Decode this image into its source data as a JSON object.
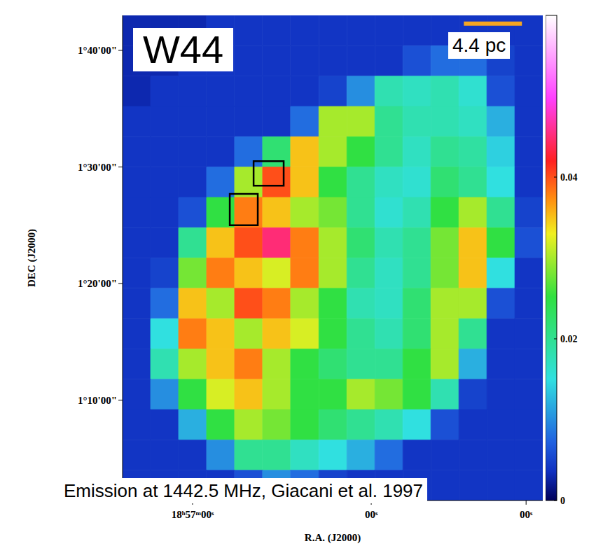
{
  "chart_data": {
    "type": "heatmap",
    "title": "W44",
    "caption": "Emission at 1442.5 MHz, Giacani et al. 1997",
    "x_label": "R.A. (J2000)",
    "y_label": "DEC (J2000)",
    "xlim": [
      68243.5,
      68102.4
    ],
    "xticks": [
      {
        "value": 68220,
        "label": "18ʰ57ᵐ00ˢ"
      },
      {
        "value": 68160,
        "label": "00ˢ"
      },
      {
        "value": 68108,
        "label": "00ˢ"
      }
    ],
    "ylim": [
      61.4,
      103.0
    ],
    "yticks": [
      {
        "value": 70,
        "label": "1°10'00\""
      },
      {
        "value": 80,
        "label": "1°20'00\""
      },
      {
        "value": 90,
        "label": "1°30'00\""
      },
      {
        "value": 100,
        "label": "1°40'00\""
      }
    ],
    "x_edges": [
      68243.5,
      68234.1,
      68224.7,
      68215.3,
      68205.9,
      68196.5,
      68187.1,
      68177.6,
      68168.2,
      68158.8,
      68149.4,
      68140.0,
      68130.6,
      68121.2,
      68111.8,
      68102.4
    ],
    "y_edges": [
      103.0,
      100.4,
      97.8,
      95.2,
      92.6,
      90.0,
      87.4,
      84.8,
      82.2,
      79.6,
      77.0,
      74.4,
      71.8,
      69.2,
      66.6,
      64.0,
      61.4
    ],
    "values": [
      [
        0.003,
        0.003,
        0.003,
        0.004,
        0.004,
        0.004,
        0.004,
        0.004,
        0.004,
        0.004,
        0.004,
        0.004,
        0.004,
        0.004,
        0.004
      ],
      [
        0.003,
        0.003,
        0.004,
        0.004,
        0.004,
        0.004,
        0.004,
        0.004,
        0.004,
        0.004,
        0.006,
        0.008,
        0.008,
        0.005,
        0.004
      ],
      [
        0.003,
        0.004,
        0.004,
        0.004,
        0.004,
        0.004,
        0.004,
        0.005,
        0.01,
        0.018,
        0.017,
        0.018,
        0.016,
        0.006,
        0.004
      ],
      [
        0.004,
        0.004,
        0.004,
        0.004,
        0.004,
        0.004,
        0.008,
        0.03,
        0.03,
        0.02,
        0.018,
        0.018,
        0.017,
        0.012,
        0.004
      ],
      [
        0.004,
        0.004,
        0.004,
        0.004,
        0.008,
        0.022,
        0.035,
        0.03,
        0.025,
        0.02,
        0.017,
        0.02,
        0.019,
        0.014,
        0.004
      ],
      [
        0.004,
        0.004,
        0.004,
        0.008,
        0.03,
        0.04,
        0.035,
        0.025,
        0.02,
        0.017,
        0.016,
        0.022,
        0.02,
        0.015,
        0.004
      ],
      [
        0.004,
        0.004,
        0.006,
        0.025,
        0.038,
        0.035,
        0.03,
        0.028,
        0.02,
        0.016,
        0.018,
        0.025,
        0.03,
        0.02,
        0.005
      ],
      [
        0.004,
        0.004,
        0.02,
        0.035,
        0.04,
        0.045,
        0.038,
        0.03,
        0.022,
        0.018,
        0.02,
        0.028,
        0.035,
        0.025,
        0.006
      ],
      [
        0.004,
        0.005,
        0.028,
        0.038,
        0.035,
        0.032,
        0.038,
        0.03,
        0.02,
        0.017,
        0.02,
        0.028,
        0.035,
        0.015,
        0.004
      ],
      [
        0.004,
        0.008,
        0.035,
        0.03,
        0.04,
        0.038,
        0.03,
        0.025,
        0.018,
        0.017,
        0.022,
        0.03,
        0.03,
        0.006,
        0.004
      ],
      [
        0.004,
        0.015,
        0.038,
        0.035,
        0.03,
        0.035,
        0.032,
        0.025,
        0.02,
        0.018,
        0.022,
        0.03,
        0.02,
        0.004,
        0.004
      ],
      [
        0.004,
        0.018,
        0.03,
        0.035,
        0.038,
        0.03,
        0.025,
        0.022,
        0.02,
        0.02,
        0.025,
        0.03,
        0.012,
        0.004,
        0.004
      ],
      [
        0.004,
        0.01,
        0.025,
        0.032,
        0.035,
        0.03,
        0.025,
        0.025,
        0.03,
        0.028,
        0.025,
        0.018,
        0.005,
        0.004,
        0.004
      ],
      [
        0.004,
        0.004,
        0.012,
        0.025,
        0.03,
        0.028,
        0.025,
        0.022,
        0.02,
        0.018,
        0.015,
        0.006,
        0.004,
        0.004,
        0.004
      ],
      [
        0.004,
        0.004,
        0.004,
        0.01,
        0.02,
        0.02,
        0.017,
        0.015,
        0.012,
        0.008,
        0.004,
        0.004,
        0.004,
        0.004,
        0.004
      ],
      [
        0.004,
        0.004,
        0.004,
        0.004,
        0.006,
        0.01,
        0.008,
        0.005,
        0.004,
        0.004,
        0.004,
        0.004,
        0.004,
        0.004,
        0.004
      ]
    ],
    "colorbar_range": [
      0,
      0.06
    ],
    "colorbar_ticks": [
      0,
      0.02,
      0.04
    ],
    "regions": [
      {
        "x": [
          68199.5,
          68189.4
        ],
        "y": [
          88.4,
          90.5
        ]
      },
      {
        "x": [
          68207.5,
          68198.1
        ],
        "y": [
          85.0,
          87.7
        ]
      }
    ],
    "scale_bar": {
      "label": "4.4 pc",
      "x": [
        68128.9,
        68109.4
      ],
      "y": 102.3
    }
  }
}
